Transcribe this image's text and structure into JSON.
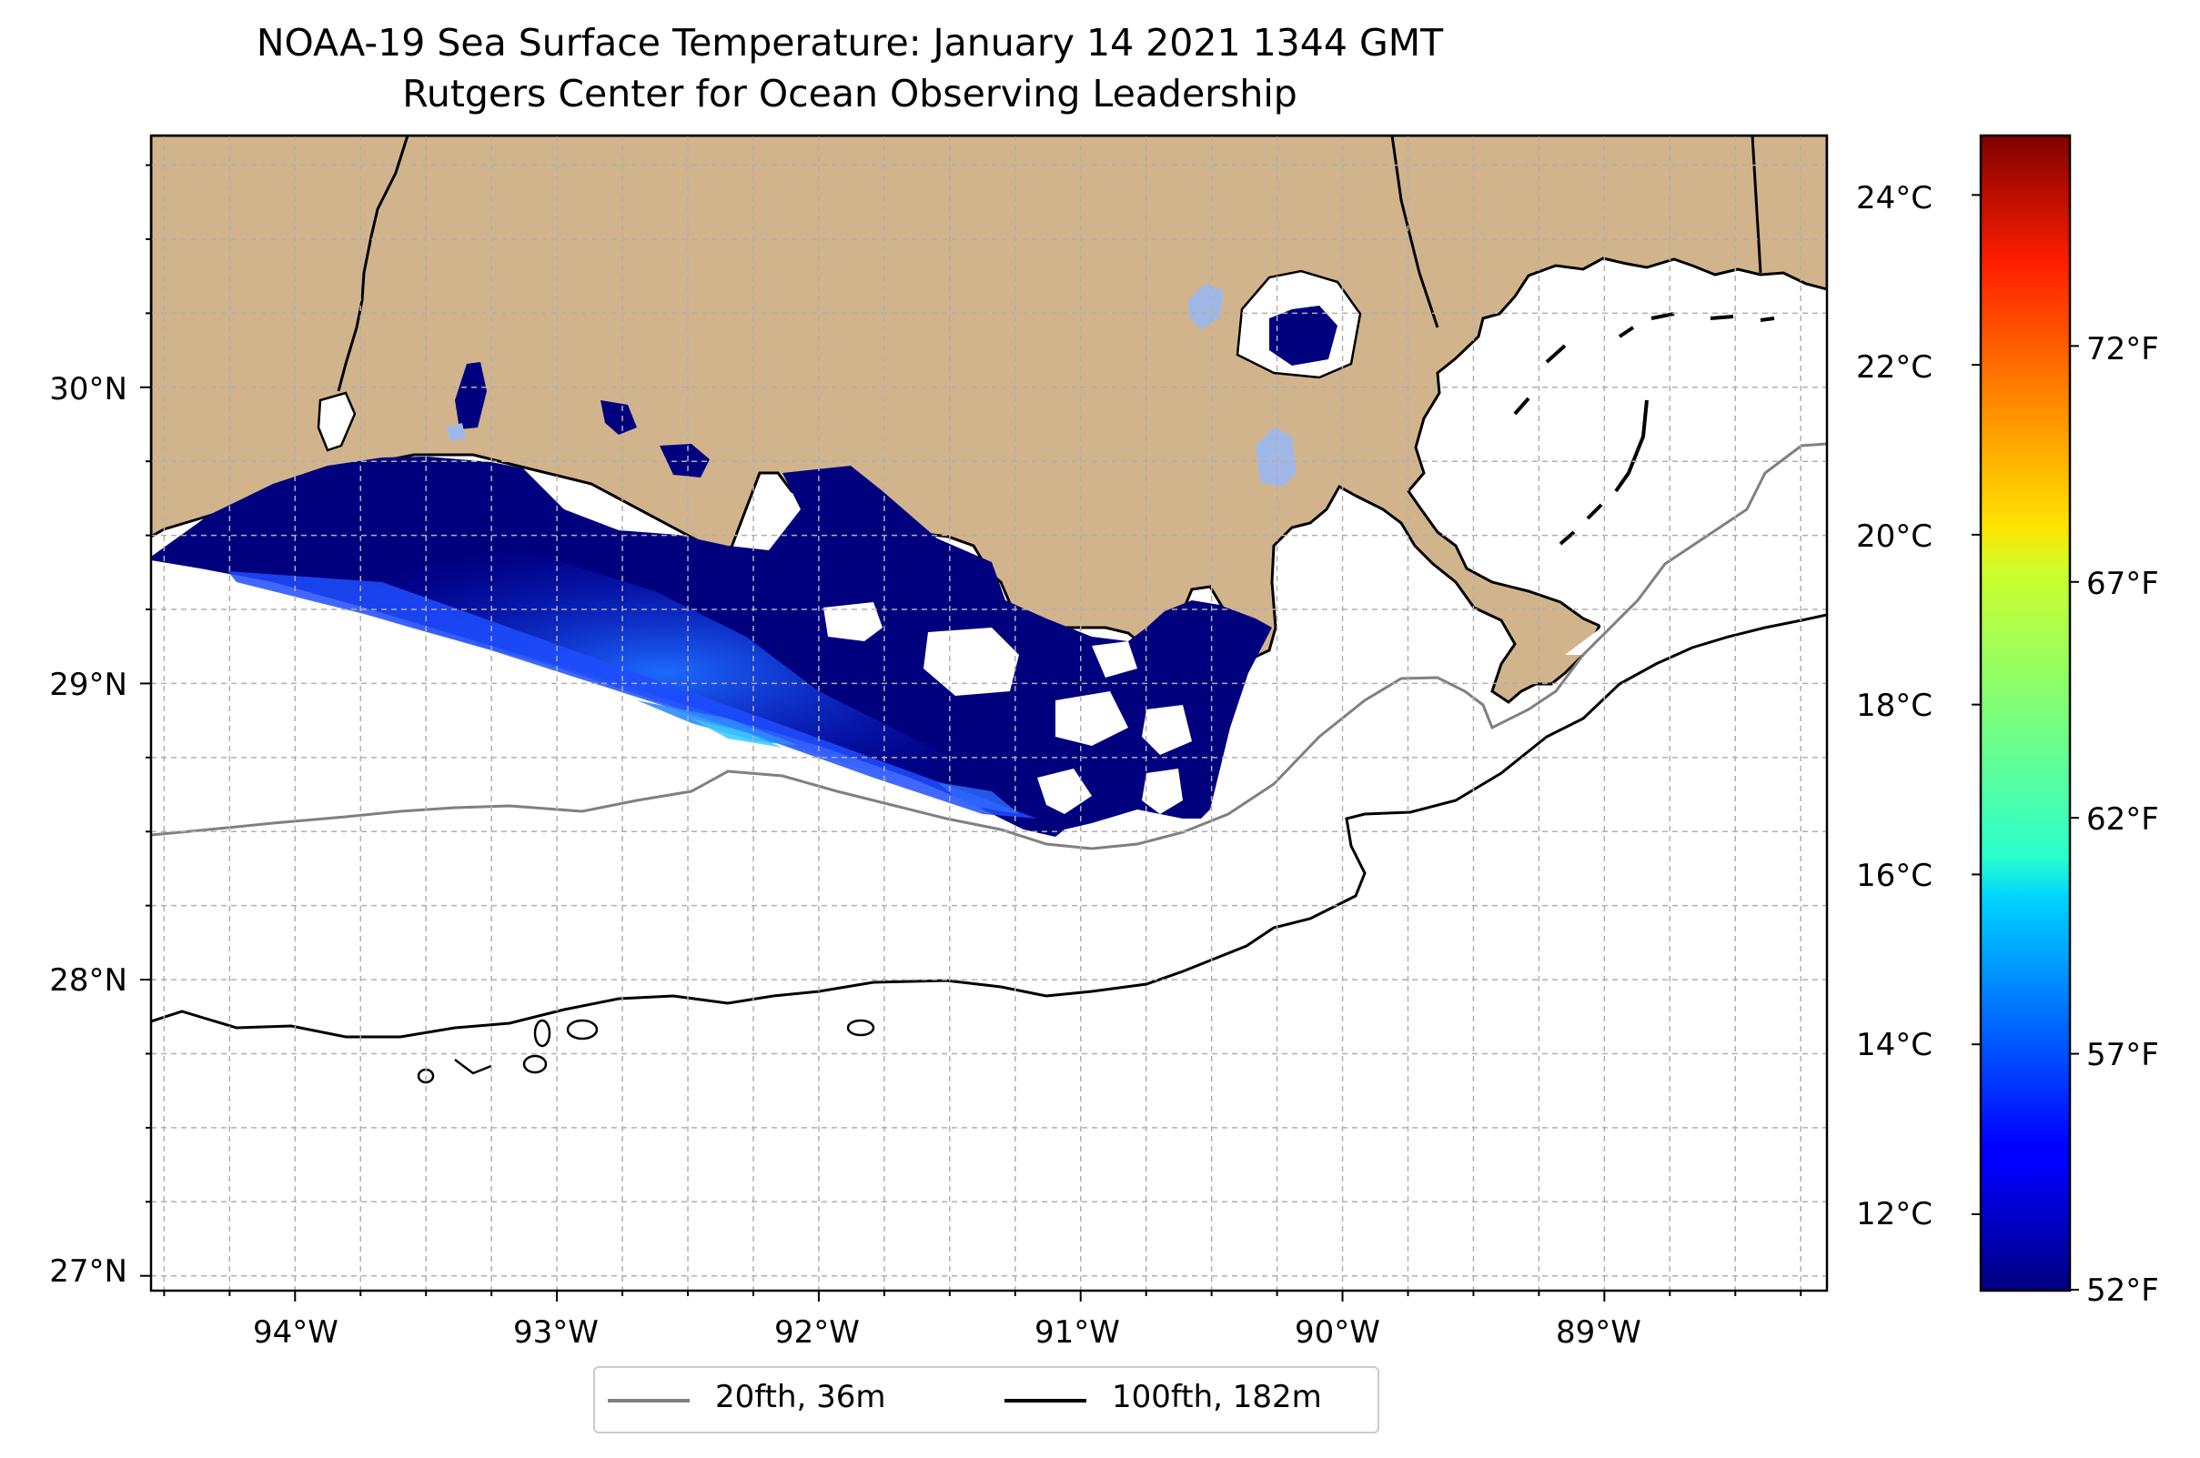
{
  "title": "NOAA-19 Sea Surface Temperature: January 14 2021 1344 GMT",
  "subtitle": "Rutgers Center for Ocean Observing Leadership",
  "colors": {
    "land": "#d2b48c",
    "coastline": "#000000",
    "isobath_20fth": "#808080",
    "isobath_100fth": "#000000",
    "missing_data": "#a0b8e8"
  },
  "map": {
    "lon_range": [
      -94.55,
      -88.15
    ],
    "lat_range": [
      26.95,
      30.85
    ],
    "lon_ticks": [
      "94°W",
      "93°W",
      "92°W",
      "91°W",
      "90°W",
      "89°W"
    ],
    "lat_ticks": [
      "27°N",
      "28°N",
      "29°N",
      "30°N"
    ],
    "gridlines": true
  },
  "colorbar": {
    "colormap": "jet",
    "celsius_range": [
      11.1,
      24.7
    ],
    "celsius_labels": [
      "12°C",
      "14°C",
      "16°C",
      "18°C",
      "20°C",
      "22°C",
      "24°C"
    ],
    "fahrenheit_labels": [
      "52°F",
      "57°F",
      "62°F",
      "67°F",
      "72°F"
    ]
  },
  "legend": {
    "items": [
      {
        "label": "20fth, 36m",
        "color": "#808080"
      },
      {
        "label": "100fth, 182m",
        "color": "#000000"
      }
    ]
  }
}
